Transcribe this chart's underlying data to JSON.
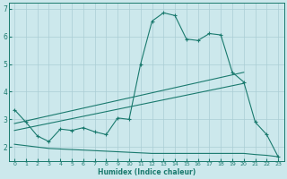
{
  "xlabel": "Humidex (Indice chaleur)",
  "bg_color": "#cce8ec",
  "grid_color": "#aacdd4",
  "line_color": "#1a7a6e",
  "xlim": [
    -0.5,
    23.5
  ],
  "ylim": [
    1.5,
    7.2
  ],
  "xticks": [
    0,
    1,
    2,
    3,
    4,
    5,
    6,
    7,
    8,
    9,
    10,
    11,
    12,
    13,
    14,
    15,
    16,
    17,
    18,
    19,
    20,
    21,
    22,
    23
  ],
  "yticks": [
    2,
    3,
    4,
    5,
    6,
    7
  ],
  "series1_x": [
    0,
    1,
    2,
    3,
    4,
    5,
    6,
    7,
    8,
    9,
    10,
    11,
    12,
    13,
    14,
    15,
    16,
    17,
    18,
    19,
    20,
    21,
    22,
    23
  ],
  "series1_y": [
    3.35,
    2.9,
    2.4,
    2.2,
    2.65,
    2.6,
    2.7,
    2.55,
    2.45,
    3.05,
    3.0,
    5.0,
    6.55,
    6.85,
    6.75,
    5.9,
    5.85,
    6.1,
    6.05,
    4.7,
    4.35,
    2.9,
    2.45,
    1.65
  ],
  "series2_x": [
    0,
    20
  ],
  "series2_y": [
    2.85,
    4.7
  ],
  "series3_x": [
    0,
    20
  ],
  "series3_y": [
    2.6,
    4.3
  ],
  "series4_x": [
    0,
    1,
    2,
    3,
    4,
    5,
    6,
    7,
    8,
    9,
    10,
    11,
    12,
    13,
    14,
    15,
    16,
    17,
    18,
    19,
    20,
    21,
    22,
    23
  ],
  "series4_y": [
    2.1,
    2.05,
    2.0,
    1.95,
    1.93,
    1.91,
    1.89,
    1.87,
    1.85,
    1.83,
    1.81,
    1.79,
    1.77,
    1.77,
    1.77,
    1.77,
    1.77,
    1.77,
    1.77,
    1.77,
    1.77,
    1.73,
    1.7,
    1.65
  ]
}
